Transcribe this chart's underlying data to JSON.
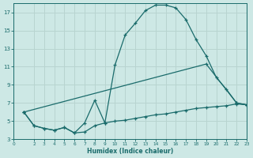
{
  "xlabel": "Humidex (Indice chaleur)",
  "bg_color": "#cde8e5",
  "grid_color": "#b8d4d0",
  "line_color": "#1a6b6b",
  "xlim": [
    0,
    23
  ],
  "ylim": [
    3,
    18
  ],
  "yticks": [
    3,
    5,
    7,
    9,
    11,
    13,
    15,
    17
  ],
  "xticks": [
    0,
    2,
    3,
    4,
    5,
    6,
    7,
    8,
    9,
    10,
    11,
    12,
    13,
    14,
    15,
    16,
    17,
    18,
    19,
    20,
    21,
    22,
    23
  ],
  "curve1_x": [
    1,
    2,
    3,
    4,
    5,
    6,
    7,
    8,
    9,
    10,
    11,
    12,
    13,
    14,
    15,
    16,
    17,
    18,
    19,
    20,
    21,
    22,
    23
  ],
  "curve1_y": [
    6.0,
    4.5,
    4.2,
    4.0,
    4.3,
    3.7,
    4.8,
    7.3,
    4.8,
    11.2,
    14.5,
    15.8,
    17.2,
    17.8,
    17.8,
    17.5,
    16.2,
    14.0,
    12.2,
    9.8,
    8.5,
    7.0,
    6.8
  ],
  "curve2_x": [
    1,
    19,
    22,
    23
  ],
  "curve2_y": [
    6.0,
    11.3,
    7.0,
    6.8
  ],
  "curve3_x": [
    1,
    2,
    3,
    4,
    5,
    6,
    7,
    8,
    9,
    10,
    11,
    12,
    13,
    14,
    15,
    16,
    17,
    18,
    19,
    20,
    21,
    22,
    23
  ],
  "curve3_y": [
    6.0,
    4.5,
    4.2,
    4.0,
    4.3,
    3.7,
    3.8,
    4.5,
    4.8,
    5.0,
    5.1,
    5.3,
    5.5,
    5.7,
    5.8,
    6.0,
    6.2,
    6.4,
    6.5,
    6.6,
    6.7,
    6.9,
    6.8
  ]
}
